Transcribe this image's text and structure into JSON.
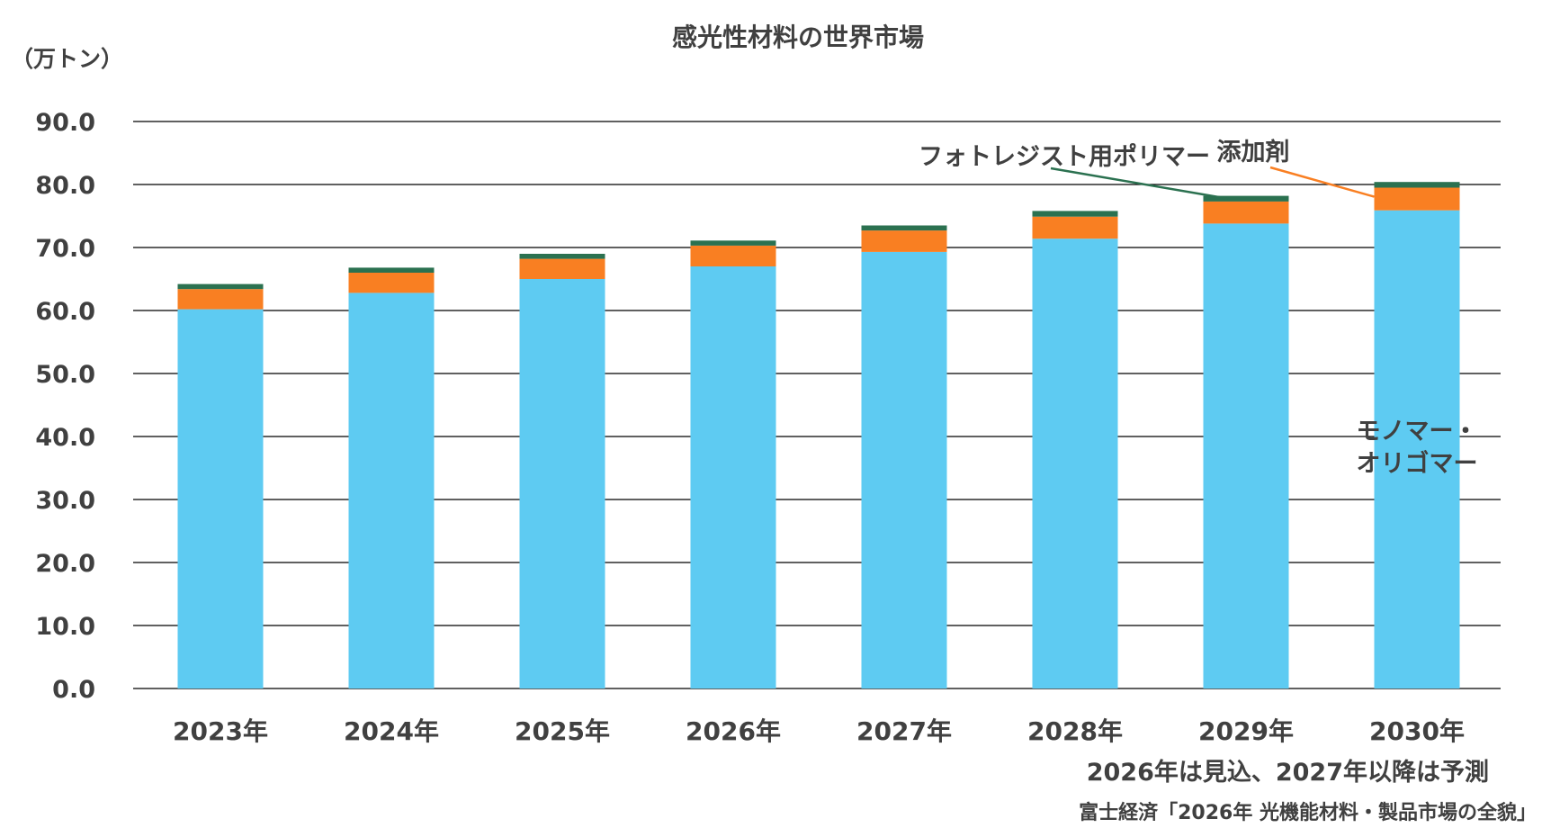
{
  "chart_data": {
    "type": "bar",
    "stacked": true,
    "title": "感光性材料の世界市場",
    "unit_label": "（万トン）",
    "ylim": [
      0,
      90
    ],
    "yticks": [
      "0.0",
      "10.0",
      "20.0",
      "30.0",
      "40.0",
      "50.0",
      "60.0",
      "70.0",
      "80.0",
      "90.0"
    ],
    "grid": true,
    "categories": [
      "2023年",
      "2024年",
      "2025年",
      "2026年",
      "2027年",
      "2028年",
      "2029年",
      "2030年"
    ],
    "series": [
      {
        "name": "モノマー・オリゴマー",
        "color": "#5ecbf2",
        "values": [
          60.2,
          62.8,
          65.0,
          67.0,
          69.3,
          71.4,
          73.8,
          75.9
        ]
      },
      {
        "name": "添加剤",
        "color": "#f97f22",
        "values": [
          3.2,
          3.2,
          3.2,
          3.3,
          3.4,
          3.5,
          3.5,
          3.6
        ]
      },
      {
        "name": "フォトレジスト用ポリマー",
        "color": "#2b7150",
        "values": [
          0.8,
          0.8,
          0.8,
          0.8,
          0.8,
          0.9,
          0.9,
          0.9
        ]
      }
    ],
    "series_labels": {
      "polymer": "フォトレジスト用ポリマー",
      "additive": "添加剤",
      "monomer_line1": "モノマー・",
      "monomer_line2": "オリゴマー"
    },
    "notes": {
      "forecast": "2026年は見込、2027年以降は予測",
      "source": "富士経済「2026年 光機能材料・製品市場の全貌」"
    }
  }
}
